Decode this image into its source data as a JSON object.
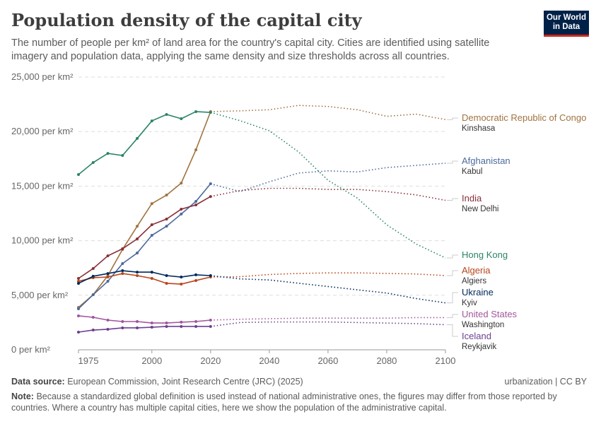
{
  "header": {
    "title": "Population density of the capital city",
    "subtitle": "The number of people per km² of land area for the country's capital city. Cities are identified using satellite imagery and population data, applying the same density and size thresholds across all countries.",
    "logo_line1": "Our World",
    "logo_line2": "in Data"
  },
  "footer": {
    "source_label": "Data source:",
    "source": "European Commission, Joint Research Centre (JRC) (2025)",
    "license": "urbanization | CC BY",
    "note_label": "Note:",
    "note": "Because a standardized global definition is used instead of national administrative ones, the figures may differ from those reported by countries. Where a country has multiple capital cities, here we show the population of the administrative capital."
  },
  "chart_data": {
    "type": "line",
    "title": "Population density of the capital city",
    "xlim": [
      1975,
      2100
    ],
    "ylim": [
      0,
      25000
    ],
    "x_ticks": [
      1975,
      2000,
      2020,
      2040,
      2060,
      2080,
      2100
    ],
    "y_ticks": [
      0,
      5000,
      10000,
      15000,
      20000,
      25000
    ],
    "y_tick_labels": [
      "0 per km²",
      "5,000 per km²",
      "10,000 per km²",
      "15,000 per km²",
      "20,000 per km²",
      "25,000 per km²"
    ],
    "grid": "horizontal dashed",
    "legend": "right, line-end labels",
    "observed_x": [
      1975,
      1980,
      1985,
      1990,
      1995,
      2000,
      2005,
      2010,
      2015,
      2020
    ],
    "projected_x": [
      2020,
      2030,
      2040,
      2050,
      2060,
      2070,
      2080,
      2090,
      2100
    ],
    "series": [
      {
        "name": "Democratic Republic of Congo",
        "city": "Kinshasa",
        "color": "#a0733f",
        "observed": [
          3890,
          5050,
          6800,
          9200,
          11330,
          13400,
          14180,
          15280,
          18330,
          21830
        ],
        "projected": [
          21830,
          21900,
          22000,
          22400,
          22300,
          22000,
          21400,
          21600,
          21100
        ]
      },
      {
        "name": "Afghanistan",
        "city": "Kabul",
        "color": "#4c6a9c",
        "observed": [
          3760,
          5050,
          6280,
          7900,
          8870,
          10490,
          11330,
          12440,
          13600,
          15220
        ],
        "projected": [
          15220,
          14500,
          15400,
          16200,
          16400,
          16300,
          16700,
          16900,
          17100
        ]
      },
      {
        "name": "India",
        "city": "New Delhi",
        "color": "#883039",
        "observed": [
          6540,
          7450,
          8610,
          9260,
          10170,
          11460,
          11980,
          12890,
          13280,
          14050
        ],
        "projected": [
          14050,
          14600,
          14800,
          14800,
          14700,
          14700,
          14500,
          14200,
          13700
        ]
      },
      {
        "name": "Hong Kong",
        "city": "",
        "color": "#2c8465",
        "observed": [
          16060,
          17160,
          18000,
          17810,
          19370,
          20980,
          21570,
          21180,
          21830,
          21760
        ],
        "projected": [
          21760,
          21000,
          20080,
          18130,
          15540,
          13900,
          11460,
          9700,
          8420
        ]
      },
      {
        "name": "Algeria",
        "city": "Algiers",
        "color": "#b8451a",
        "observed": [
          6280,
          6610,
          6670,
          6990,
          6800,
          6540,
          6090,
          6020,
          6350,
          6670
        ],
        "projected": [
          6670,
          6700,
          6900,
          7000,
          7050,
          7050,
          7000,
          6950,
          6800
        ]
      },
      {
        "name": "Ukraine",
        "city": "Kyiv",
        "color": "#00295b",
        "observed": [
          6090,
          6740,
          6990,
          7250,
          7120,
          7120,
          6800,
          6670,
          6870,
          6800
        ],
        "projected": [
          6800,
          6500,
          6400,
          6100,
          5800,
          5500,
          5200,
          4700,
          4300
        ]
      },
      {
        "name": "United States",
        "city": "Washington",
        "color": "#a2559c",
        "observed": [
          3110,
          2980,
          2720,
          2590,
          2590,
          2460,
          2460,
          2530,
          2590,
          2720
        ],
        "projected": [
          2720,
          2800,
          2850,
          2900,
          2900,
          2900,
          2900,
          2950,
          2950
        ]
      },
      {
        "name": "Iceland",
        "city": "Reykjavik",
        "color": "#6d3e91",
        "observed": [
          1620,
          1810,
          1880,
          2010,
          2010,
          2070,
          2140,
          2140,
          2140,
          2140
        ],
        "projected": [
          2140,
          2500,
          2550,
          2550,
          2550,
          2500,
          2450,
          2400,
          2300
        ]
      }
    ]
  }
}
